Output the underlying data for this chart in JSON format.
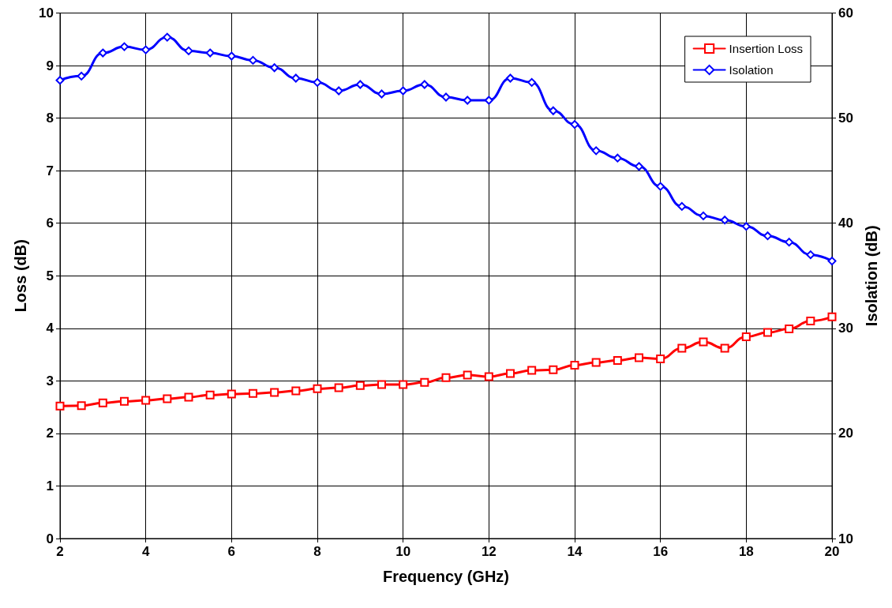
{
  "chart_data": {
    "type": "line",
    "xlabel": "Frequency (GHz)",
    "ylabel": "Loss (dB)",
    "y2label": "Isolation (dB)",
    "x": [
      2,
      2.5,
      3,
      3.5,
      4,
      4.5,
      5,
      5.5,
      6,
      6.5,
      7,
      7.5,
      8,
      8.5,
      9,
      9.5,
      10,
      10.5,
      11,
      11.5,
      12,
      12.5,
      13,
      13.5,
      14,
      14.5,
      15,
      15.5,
      16,
      16.5,
      17,
      17.5,
      18,
      18.5,
      19,
      19.5,
      20
    ],
    "series": [
      {
        "name": "Insertion Loss",
        "color": "#ff0000",
        "marker": "square",
        "values": [
          2.52,
          2.53,
          2.58,
          2.61,
          2.63,
          2.66,
          2.69,
          2.73,
          2.75,
          2.76,
          2.78,
          2.81,
          2.85,
          2.87,
          2.91,
          2.93,
          2.93,
          2.97,
          3.06,
          3.11,
          3.08,
          3.14,
          3.2,
          3.21,
          3.3,
          3.35,
          3.39,
          3.44,
          3.42,
          3.62,
          3.74,
          3.62,
          3.84,
          3.92,
          3.99,
          4.14,
          4.22
        ]
      },
      {
        "name": "Isolation",
        "color": "#0000ff",
        "marker": "diamond",
        "axis": "y2",
        "values": [
          53.6,
          54.0,
          56.2,
          56.8,
          56.5,
          57.7,
          56.4,
          56.2,
          55.9,
          55.5,
          54.8,
          53.8,
          53.4,
          52.6,
          53.2,
          52.3,
          52.6,
          53.2,
          52.0,
          51.7,
          51.7,
          53.8,
          53.4,
          50.7,
          49.4,
          46.9,
          46.2,
          45.4,
          43.5,
          41.6,
          40.7,
          40.3,
          39.7,
          38.8,
          38.2,
          37.0,
          36.4
        ]
      }
    ],
    "xlim": [
      2,
      20
    ],
    "xticks": [
      2,
      4,
      6,
      8,
      10,
      12,
      14,
      16,
      18,
      20
    ],
    "ylim": [
      0,
      10
    ],
    "yticks": [
      0,
      1,
      2,
      3,
      4,
      5,
      6,
      7,
      8,
      9,
      10
    ],
    "y2lim": [
      10,
      60
    ],
    "y2ticks": [
      10,
      20,
      30,
      40,
      50,
      60
    ],
    "grid": true,
    "legend": "top right",
    "line_style": "solid"
  }
}
